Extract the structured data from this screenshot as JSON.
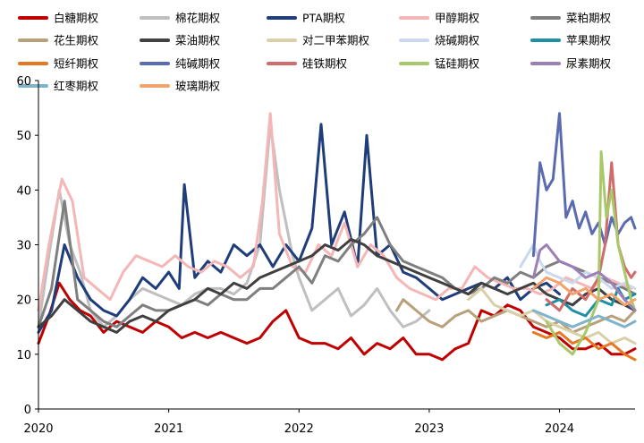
{
  "chart_data": {
    "type": "line",
    "title": "",
    "xlabel": "",
    "ylabel": "",
    "ylim": [
      0,
      60
    ],
    "yticks": [
      0,
      10,
      20,
      30,
      40,
      50,
      60
    ],
    "xlim": [
      2020.0,
      2024.58
    ],
    "xticks": [
      {
        "value": 2020,
        "label": "2020"
      },
      {
        "value": 2021,
        "label": "2021"
      },
      {
        "value": 2022,
        "label": "2022"
      },
      {
        "value": 2023,
        "label": "2023"
      },
      {
        "value": 2024,
        "label": "2024"
      }
    ],
    "legend_position": "top",
    "series": [
      {
        "name": "白糖期权",
        "color": "#c00000",
        "x": [
          2020.0,
          2020.08,
          2020.16,
          2020.24,
          2020.32,
          2020.4,
          2020.5,
          2020.6,
          2020.7,
          2020.8,
          2020.9,
          2021.0,
          2021.1,
          2021.2,
          2021.3,
          2021.4,
          2021.5,
          2021.6,
          2021.7,
          2021.8,
          2021.9,
          2022.0,
          2022.1,
          2022.2,
          2022.3,
          2022.4,
          2022.5,
          2022.6,
          2022.7,
          2022.8,
          2022.9,
          2023.0,
          2023.1,
          2023.2,
          2023.3,
          2023.4,
          2023.5,
          2023.6,
          2023.7,
          2023.8,
          2023.9,
          2024.0,
          2024.1,
          2024.2,
          2024.3,
          2024.4,
          2024.5,
          2024.58
        ],
        "values": [
          12,
          17,
          23,
          20,
          18,
          17,
          14,
          16,
          15,
          14,
          16,
          15,
          13,
          14,
          13,
          14,
          13,
          12,
          13,
          16,
          18,
          13,
          12,
          12,
          11,
          13,
          10,
          12,
          11,
          13,
          10,
          10,
          9,
          11,
          12,
          18,
          17,
          19,
          18,
          15,
          14,
          13,
          11,
          11,
          12,
          10,
          10,
          11
        ]
      },
      {
        "name": "棉花期权",
        "color": "#bfbfbf",
        "x": [
          2020.0,
          2020.08,
          2020.16,
          2020.24,
          2020.32,
          2020.4,
          2020.5,
          2020.6,
          2020.7,
          2020.8,
          2020.9,
          2021.0,
          2021.1,
          2021.2,
          2021.3,
          2021.4,
          2021.5,
          2021.6,
          2021.7,
          2021.78,
          2021.85,
          2021.95,
          2022.0,
          2022.1,
          2022.2,
          2022.3,
          2022.4,
          2022.5,
          2022.6,
          2022.7,
          2022.8,
          2022.9,
          2023.0
        ],
        "values": [
          15,
          28,
          40,
          30,
          25,
          18,
          15,
          17,
          20,
          22,
          21,
          20,
          19,
          21,
          22,
          22,
          21,
          23,
          30,
          52,
          40,
          28,
          24,
          18,
          20,
          22,
          17,
          19,
          22,
          18,
          15,
          16,
          18
        ]
      },
      {
        "name": "PTA期权",
        "color": "#1f3d7a",
        "x": [
          2020.0,
          2020.1,
          2020.2,
          2020.3,
          2020.4,
          2020.5,
          2020.6,
          2020.7,
          2020.8,
          2020.9,
          2021.0,
          2021.08,
          2021.12,
          2021.2,
          2021.3,
          2021.4,
          2021.5,
          2021.6,
          2021.7,
          2021.8,
          2021.9,
          2022.0,
          2022.1,
          2022.17,
          2022.25,
          2022.35,
          2022.45,
          2022.52,
          2022.6,
          2022.7,
          2022.8,
          2022.9,
          2023.0,
          2023.1,
          2023.2,
          2023.3,
          2023.4,
          2023.5,
          2023.6,
          2023.7,
          2023.8,
          2023.9,
          2024.0
        ],
        "values": [
          14,
          18,
          30,
          24,
          20,
          18,
          17,
          20,
          24,
          22,
          25,
          22,
          41,
          24,
          27,
          25,
          30,
          28,
          30,
          26,
          30,
          27,
          33,
          52,
          30,
          36,
          26,
          50,
          28,
          30,
          25,
          24,
          22,
          20,
          21,
          22,
          23,
          22,
          24,
          20,
          22,
          23,
          21
        ]
      },
      {
        "name": "甲醇期权",
        "color": "#f4b6b6",
        "x": [
          2020.0,
          2020.08,
          2020.18,
          2020.26,
          2020.35,
          2020.45,
          2020.55,
          2020.65,
          2020.75,
          2020.85,
          2020.95,
          2021.05,
          2021.15,
          2021.25,
          2021.35,
          2021.45,
          2021.55,
          2021.65,
          2021.72,
          2021.78,
          2021.85,
          2021.95,
          2022.05,
          2022.15,
          2022.25,
          2022.35,
          2022.45,
          2022.55,
          2022.65,
          2022.75,
          2022.85,
          2022.95,
          2023.05,
          2023.15,
          2023.25,
          2023.35,
          2023.45,
          2023.55,
          2023.65,
          2023.75,
          2023.85,
          2023.95,
          2024.05,
          2024.15,
          2024.25,
          2024.35,
          2024.45,
          2024.55
        ],
        "values": [
          18,
          30,
          42,
          38,
          24,
          22,
          20,
          25,
          28,
          27,
          26,
          28,
          26,
          25,
          27,
          26,
          24,
          26,
          38,
          54,
          32,
          26,
          25,
          30,
          28,
          34,
          26,
          30,
          28,
          24,
          22,
          21,
          20,
          22,
          22,
          26,
          24,
          23,
          22,
          22,
          21,
          22,
          24,
          23,
          22,
          24,
          23,
          22
        ]
      },
      {
        "name": "菜粕期权",
        "color": "#7f7f7f",
        "x": [
          2020.0,
          2020.1,
          2020.2,
          2020.3,
          2020.4,
          2020.5,
          2020.6,
          2020.7,
          2020.8,
          2020.9,
          2021.0,
          2021.1,
          2021.2,
          2021.3,
          2021.4,
          2021.5,
          2021.6,
          2021.7,
          2021.8,
          2021.9,
          2022.0,
          2022.1,
          2022.2,
          2022.3,
          2022.4,
          2022.5,
          2022.6,
          2022.7,
          2022.8,
          2022.9,
          2023.0,
          2023.1,
          2023.2,
          2023.3,
          2023.4,
          2023.5,
          2023.6,
          2023.7,
          2023.8,
          2023.9,
          2024.0,
          2024.1,
          2024.2,
          2024.3,
          2024.4,
          2024.5,
          2024.58
        ],
        "values": [
          15,
          22,
          38,
          20,
          18,
          16,
          15,
          17,
          19,
          18,
          18,
          19,
          20,
          19,
          21,
          20,
          20,
          22,
          22,
          24,
          26,
          23,
          28,
          27,
          30,
          32,
          35,
          30,
          27,
          26,
          25,
          24,
          22,
          21,
          22,
          24,
          23,
          25,
          24,
          26,
          27,
          26,
          25,
          24,
          23,
          22,
          21
        ]
      },
      {
        "name": "花生期权",
        "color": "#b8a07a",
        "x": [
          2022.75,
          2022.8,
          2022.9,
          2023.0,
          2023.1,
          2023.2,
          2023.3,
          2023.4,
          2023.5,
          2023.6,
          2023.7,
          2023.8,
          2023.9,
          2024.0,
          2024.1,
          2024.2,
          2024.3,
          2024.4,
          2024.5,
          2024.58
        ],
        "values": [
          18,
          20,
          18,
          16,
          15,
          17,
          18,
          16,
          17,
          18,
          17,
          16,
          15,
          16,
          14,
          15,
          16,
          17,
          16,
          18
        ]
      },
      {
        "name": "菜油期权",
        "color": "#404040",
        "x": [
          2020.0,
          2020.1,
          2020.2,
          2020.3,
          2020.4,
          2020.5,
          2020.6,
          2020.7,
          2020.8,
          2020.9,
          2021.0,
          2021.1,
          2021.2,
          2021.3,
          2021.4,
          2021.5,
          2021.6,
          2021.7,
          2021.8,
          2021.9,
          2022.0,
          2022.1,
          2022.2,
          2022.3,
          2022.4,
          2022.5,
          2022.6,
          2022.7,
          2022.8,
          2022.9,
          2023.0,
          2023.1,
          2023.2,
          2023.3,
          2023.4,
          2023.5,
          2023.6,
          2023.7,
          2023.8,
          2023.9,
          2024.0,
          2024.1,
          2024.2,
          2024.3,
          2024.4,
          2024.5,
          2024.58
        ],
        "values": [
          15,
          17,
          20,
          18,
          16,
          15,
          14,
          16,
          17,
          16,
          18,
          19,
          20,
          22,
          21,
          23,
          22,
          24,
          25,
          26,
          27,
          28,
          30,
          29,
          31,
          30,
          28,
          27,
          26,
          25,
          24,
          23,
          22,
          21,
          23,
          22,
          21,
          22,
          23,
          21,
          20,
          19,
          21,
          22,
          20,
          19,
          18
        ]
      },
      {
        "name": "对二甲苯期权",
        "color": "#d9cfa8",
        "x": [
          2023.3,
          2023.4,
          2023.5,
          2023.6,
          2023.7,
          2023.8,
          2023.9,
          2024.0,
          2024.1,
          2024.2,
          2024.3,
          2024.4,
          2024.5,
          2024.58
        ],
        "values": [
          20,
          22,
          19,
          18,
          17,
          18,
          16,
          15,
          14,
          13,
          14,
          12,
          13,
          12
        ]
      },
      {
        "name": "烧碱期权",
        "color": "#c9d9ee",
        "x": [
          2023.7,
          2023.75,
          2023.8,
          2023.85,
          2023.9,
          2024.0,
          2024.1,
          2024.2,
          2024.3,
          2024.4,
          2024.5,
          2024.58
        ],
        "values": [
          26,
          28,
          30,
          27,
          25,
          24,
          23,
          25,
          24,
          22,
          23,
          22
        ]
      },
      {
        "name": "苹果期权",
        "color": "#1f8fa3",
        "x": [
          2023.9,
          2024.0,
          2024.1,
          2024.2,
          2024.3,
          2024.4,
          2024.45,
          2024.5,
          2024.58
        ],
        "values": [
          19,
          20,
          18,
          17,
          20,
          19,
          22,
          20,
          21
        ]
      },
      {
        "name": "短纤期权",
        "color": "#e87722",
        "x": [
          2023.8,
          2023.9,
          2024.0,
          2024.1,
          2024.2,
          2024.3,
          2024.4,
          2024.5,
          2024.58
        ],
        "values": [
          14,
          13,
          14,
          12,
          13,
          11,
          12,
          10,
          9
        ]
      },
      {
        "name": "纯碱期权",
        "color": "#5b6bb0",
        "x": [
          2023.8,
          2023.85,
          2023.9,
          2023.95,
          2024.0,
          2024.05,
          2024.1,
          2024.15,
          2024.2,
          2024.25,
          2024.3,
          2024.35,
          2024.4,
          2024.45,
          2024.5,
          2024.55,
          2024.58
        ],
        "values": [
          28,
          45,
          40,
          42,
          54,
          35,
          38,
          33,
          36,
          32,
          34,
          30,
          35,
          32,
          34,
          35,
          33
        ]
      },
      {
        "name": "硅铁期权",
        "color": "#d06c6c",
        "x": [
          2023.9,
          2024.0,
          2024.1,
          2024.2,
          2024.3,
          2024.35,
          2024.4,
          2024.45,
          2024.5,
          2024.55,
          2024.58
        ],
        "values": [
          20,
          18,
          22,
          20,
          24,
          30,
          45,
          30,
          26,
          24,
          25
        ]
      },
      {
        "name": "锰硅期权",
        "color": "#a8c96a",
        "x": [
          2023.9,
          2024.0,
          2024.1,
          2024.2,
          2024.3,
          2024.32,
          2024.36,
          2024.4,
          2024.45,
          2024.5,
          2024.55,
          2024.58
        ],
        "values": [
          16,
          12,
          10,
          14,
          20,
          47,
          35,
          40,
          30,
          25,
          20,
          18
        ]
      },
      {
        "name": "尿素期权",
        "color": "#9b7fb6",
        "x": [
          2023.8,
          2023.85,
          2023.9,
          2024.0,
          2024.1,
          2024.2,
          2024.3,
          2024.4,
          2024.5,
          2024.58
        ],
        "values": [
          24,
          29,
          30,
          27,
          26,
          24,
          25,
          23,
          20,
          18
        ]
      },
      {
        "name": "红枣期权",
        "color": "#7fb3c9",
        "x": [
          2023.8,
          2023.9,
          2024.0,
          2024.1,
          2024.2,
          2024.3,
          2024.4,
          2024.5,
          2024.58
        ],
        "values": [
          18,
          17,
          16,
          15,
          16,
          17,
          16,
          15,
          16
        ]
      },
      {
        "name": "玻璃期权",
        "color": "#f2a36b",
        "x": [
          2023.8,
          2023.9,
          2024.0,
          2024.1,
          2024.2,
          2024.3,
          2024.4,
          2024.5,
          2024.58
        ],
        "values": [
          22,
          24,
          23,
          21,
          22,
          20,
          21,
          19,
          20
        ]
      }
    ]
  }
}
